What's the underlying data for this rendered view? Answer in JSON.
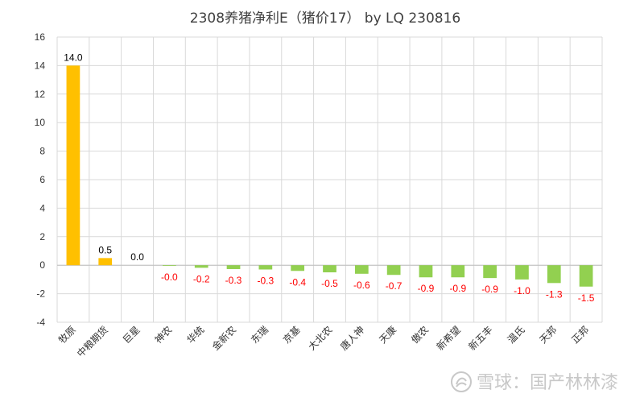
{
  "chart_data": {
    "type": "bar",
    "title": "2308养猪净利E（猪价17） by LQ 230816",
    "xlabel": "",
    "ylabel": "",
    "ylim": [
      -4,
      16
    ],
    "yticks": [
      -4,
      -2,
      0,
      2,
      4,
      6,
      8,
      10,
      12,
      14,
      16
    ],
    "grid": true,
    "legend": "none",
    "categories": [
      "牧原",
      "中粮期货",
      "巨星",
      "神农",
      "华统",
      "金新农",
      "东瑞",
      "京基",
      "大北农",
      "唐人神",
      "天康",
      "傲农",
      "新希望",
      "新五丰",
      "温氏",
      "天邦",
      "正邦"
    ],
    "values": [
      14.0,
      0.5,
      0.0,
      -0.0,
      -0.2,
      -0.3,
      -0.3,
      -0.4,
      -0.5,
      -0.6,
      -0.7,
      -0.9,
      -0.9,
      -0.9,
      -1.0,
      -1.3,
      -1.5
    ],
    "plot_values": [
      14.0,
      0.5,
      0.0,
      -0.05,
      -0.18,
      -0.27,
      -0.3,
      -0.4,
      -0.5,
      -0.6,
      -0.68,
      -0.85,
      -0.85,
      -0.9,
      -1.0,
      -1.25,
      -1.5
    ],
    "data_labels": [
      "14.0",
      "0.5",
      "0.0",
      "-0.0",
      "-0.2",
      "-0.3",
      "-0.3",
      "-0.4",
      "-0.5",
      "-0.6",
      "-0.7",
      "-0.9",
      "-0.9",
      "-0.9",
      "-1.0",
      "-1.3",
      "-1.5"
    ],
    "colors": {
      "positive": "#FFC000",
      "negative": "#92D050",
      "negative_label": "#FF0000",
      "positive_label": "#000000",
      "grid": "#D9D9D9",
      "axis": "#BFBFBF"
    }
  },
  "watermark": {
    "text": "雪球：国产林林漆"
  }
}
